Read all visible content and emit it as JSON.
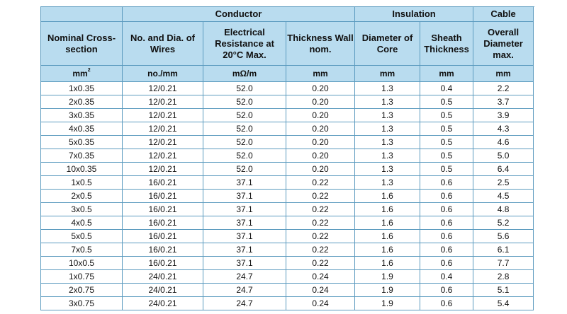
{
  "groups": {
    "conductor": "Conductor",
    "insulation": "Insulation",
    "cable": "Cable"
  },
  "columns": [
    "Nominal Cross-section",
    "No. and Dia. of Wires",
    "Electrical Resistance at 20°C Max.",
    "Thickness Wall nom.",
    "Diameter of Core",
    "Sheath Thickness",
    "Overall Diameter max."
  ],
  "units": {
    "section_base": "mm",
    "section_exp": "2",
    "wires": "no./mm",
    "resistance": "mΩ/m",
    "thickness": "mm",
    "core": "mm",
    "sheath": "mm",
    "overall": "mm"
  },
  "rows": [
    [
      "1x0.35",
      "12/0.21",
      "52.0",
      "0.20",
      "1.3",
      "0.4",
      "2.2"
    ],
    [
      "2x0.35",
      "12/0.21",
      "52.0",
      "0.20",
      "1.3",
      "0.5",
      "3.7"
    ],
    [
      "3x0.35",
      "12/0.21",
      "52.0",
      "0.20",
      "1.3",
      "0.5",
      "3.9"
    ],
    [
      "4x0.35",
      "12/0.21",
      "52.0",
      "0.20",
      "1.3",
      "0.5",
      "4.3"
    ],
    [
      "5x0.35",
      "12/0.21",
      "52.0",
      "0.20",
      "1.3",
      "0.5",
      "4.6"
    ],
    [
      "7x0.35",
      "12/0.21",
      "52.0",
      "0.20",
      "1.3",
      "0.5",
      "5.0"
    ],
    [
      "10x0.35",
      "12/0.21",
      "52.0",
      "0.20",
      "1.3",
      "0.5",
      "6.4"
    ],
    [
      "1x0.5",
      "16/0.21",
      "37.1",
      "0.22",
      "1.3",
      "0.6",
      "2.5"
    ],
    [
      "2x0.5",
      "16/0.21",
      "37.1",
      "0.22",
      "1.6",
      "0.6",
      "4.5"
    ],
    [
      "3x0.5",
      "16/0.21",
      "37.1",
      "0.22",
      "1.6",
      "0.6",
      "4.8"
    ],
    [
      "4x0.5",
      "16/0.21",
      "37.1",
      "0.22",
      "1.6",
      "0.6",
      "5.2"
    ],
    [
      "5x0.5",
      "16/0.21",
      "37.1",
      "0.22",
      "1.6",
      "0.6",
      "5.6"
    ],
    [
      "7x0.5",
      "16/0.21",
      "37.1",
      "0.22",
      "1.6",
      "0.6",
      "6.1"
    ],
    [
      "10x0.5",
      "16/0.21",
      "37.1",
      "0.22",
      "1.6",
      "0.6",
      "7.7"
    ],
    [
      "1x0.75",
      "24/0.21",
      "24.7",
      "0.24",
      "1.9",
      "0.4",
      "2.8"
    ],
    [
      "2x0.75",
      "24/0.21",
      "24.7",
      "0.24",
      "1.9",
      "0.6",
      "5.1"
    ],
    [
      "3x0.75",
      "24/0.21",
      "24.7",
      "0.24",
      "1.9",
      "0.6",
      "5.4"
    ]
  ]
}
